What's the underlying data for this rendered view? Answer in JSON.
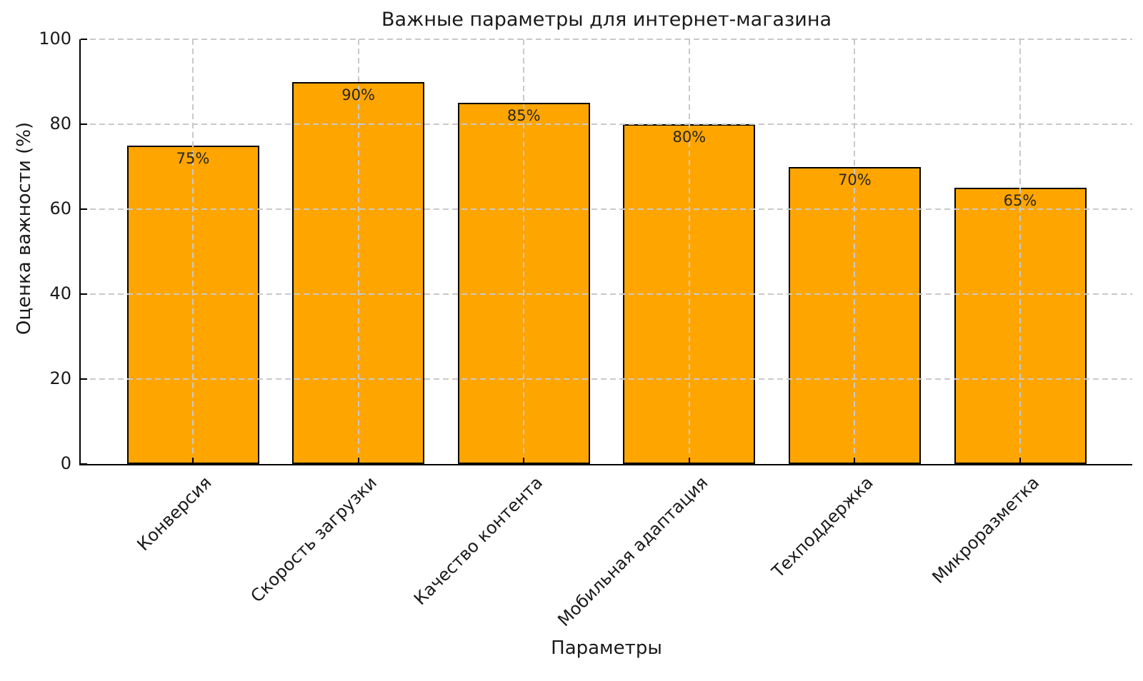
{
  "chart_data": {
    "type": "bar",
    "title": "Важные параметры для интернет-магазина",
    "xlabel": "Параметры",
    "ylabel": "Оценка важности (%)",
    "categories": [
      "Конверсия",
      "Скорость загрузки",
      "Качество контента",
      "Мобильная адаптация",
      "Техподдержка",
      "Микроразметка"
    ],
    "values": [
      75,
      90,
      85,
      80,
      70,
      65
    ],
    "bar_labels": [
      "75%",
      "90%",
      "85%",
      "80%",
      "70%",
      "65%"
    ],
    "yticks": [
      0,
      20,
      40,
      60,
      80,
      100
    ],
    "ylim": [
      0,
      100
    ],
    "grid": "dashed",
    "legend": "none",
    "colors": {
      "bar_fill": "#FFA500",
      "bar_edge": "#000000",
      "grid": "#c9c9c9",
      "text": "#1a1a1a",
      "spine": "#000000",
      "background": "#ffffff"
    }
  }
}
